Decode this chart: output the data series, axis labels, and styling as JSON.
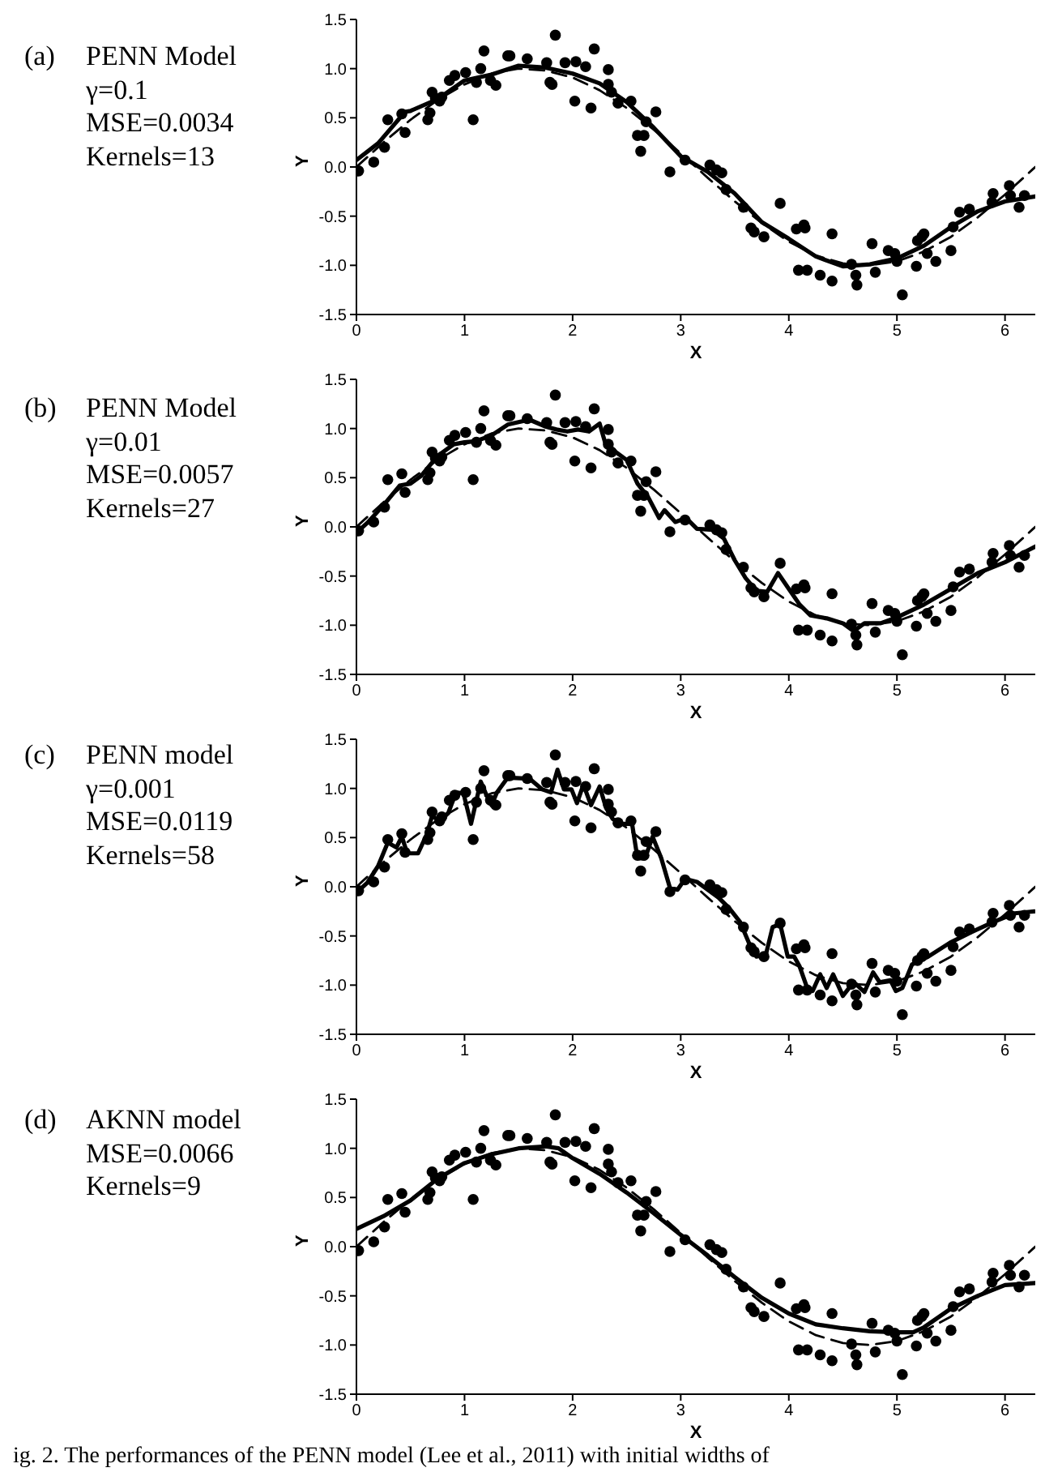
{
  "chart_data": [
    {
      "type": "line",
      "annotations": [
        "(a)",
        "PENN Model",
        "γ=0.1",
        "MSE=0.0034",
        "Kernels=13"
      ],
      "xlabel": "X",
      "ylabel": "Y",
      "xlim": [
        0,
        6.28
      ],
      "ylim": [
        -1.5,
        1.5
      ],
      "xticks": [
        0,
        1,
        2,
        3,
        4,
        5,
        6
      ],
      "yticks": [
        -1.5,
        {
          "value": -1,
          "label": "-1.0"
        },
        -0.5,
        {
          "value": 0,
          "label": "0.0"
        },
        0.5,
        {
          "value": 1,
          "label": "1.0"
        },
        1.5
      ],
      "series": [
        {
          "type": "line",
          "line_style": "dashed",
          "color": "#000000",
          "x": [
            0,
            0.25,
            0.5,
            0.75,
            1,
            1.25,
            1.5,
            1.75,
            2,
            2.25,
            2.5,
            2.75,
            3,
            3.25,
            3.5,
            3.75,
            4,
            4.25,
            4.5,
            4.75,
            5,
            5.25,
            5.5,
            5.75,
            6,
            6.25,
            6.28
          ],
          "values": [
            0,
            0.25,
            0.48,
            0.68,
            0.84,
            0.95,
            1.0,
            0.98,
            0.91,
            0.78,
            0.6,
            0.38,
            0.14,
            -0.11,
            -0.35,
            -0.57,
            -0.76,
            -0.9,
            -0.98,
            -1.0,
            -0.96,
            -0.86,
            -0.71,
            -0.51,
            -0.28,
            -0.03,
            0
          ]
        },
        {
          "type": "line",
          "line_style": "solid",
          "color": "#000000",
          "x": [
            0,
            0.2,
            0.45,
            0.5,
            0.75,
            1,
            1.25,
            1.5,
            1.75,
            2,
            2.25,
            2.5,
            2.75,
            3,
            3.25,
            3.5,
            3.75,
            4,
            4.25,
            4.5,
            4.75,
            5,
            5.25,
            5.5,
            5.75,
            6,
            6.28
          ],
          "values": [
            0.07,
            0.24,
            0.56,
            0.57,
            0.69,
            0.88,
            0.94,
            1.03,
            1.01,
            0.95,
            0.85,
            0.66,
            0.4,
            0.11,
            -0.05,
            -0.27,
            -0.56,
            -0.73,
            -0.91,
            -1.01,
            -0.99,
            -0.93,
            -0.8,
            -0.61,
            -0.45,
            -0.35,
            -0.3
          ]
        },
        {
          "type": "scatter",
          "marker": "circle",
          "color": "#000000",
          "x": [
            0.02,
            0.16,
            0.26,
            0.29,
            0.42,
            0.45,
            0.66,
            0.68,
            0.7,
            0.73,
            0.77,
            0.79,
            0.86,
            0.91,
            1.01,
            1.08,
            1.11,
            1.15,
            1.18,
            1.24,
            1.29,
            1.4,
            1.42,
            1.58,
            1.76,
            1.79,
            1.81,
            1.84,
            1.93,
            2.02,
            2.03,
            2.12,
            2.17,
            2.2,
            2.33,
            2.33,
            2.36,
            2.42,
            2.54,
            2.6,
            2.63,
            2.66,
            2.68,
            2.77,
            2.9,
            3.04,
            3.27,
            3.33,
            3.38,
            3.42,
            3.58,
            3.65,
            3.68,
            3.77,
            3.92,
            4.07,
            4.09,
            4.14,
            4.15,
            4.17,
            4.29,
            4.4,
            4.4,
            4.58,
            4.62,
            4.63,
            4.77,
            4.8,
            4.92,
            4.98,
            5.0,
            5.05,
            5.18,
            5.19,
            5.23,
            5.25,
            5.28,
            5.36,
            5.5,
            5.52,
            5.58,
            5.67,
            5.88,
            5.89,
            6.04,
            6.05,
            6.13,
            6.18
          ],
          "values": [
            -0.04,
            0.05,
            0.2,
            0.48,
            0.54,
            0.35,
            0.48,
            0.55,
            0.76,
            0.7,
            0.67,
            0.71,
            0.88,
            0.93,
            0.96,
            0.48,
            0.86,
            1.0,
            1.18,
            0.88,
            0.83,
            1.13,
            1.13,
            1.1,
            1.06,
            0.86,
            0.84,
            1.34,
            1.06,
            0.67,
            1.07,
            1.02,
            0.6,
            1.2,
            0.99,
            0.84,
            0.76,
            0.65,
            0.67,
            0.32,
            0.16,
            0.32,
            0.46,
            0.56,
            -0.05,
            0.07,
            0.02,
            -0.03,
            -0.06,
            -0.23,
            -0.41,
            -0.62,
            -0.66,
            -0.71,
            -0.37,
            -0.63,
            -1.05,
            -0.59,
            -0.62,
            -1.05,
            -1.1,
            -0.68,
            -1.16,
            -0.99,
            -1.1,
            -1.2,
            -0.78,
            -1.07,
            -0.85,
            -0.88,
            -0.96,
            -1.3,
            -1.01,
            -0.75,
            -0.71,
            -0.68,
            -0.88,
            -0.96,
            -0.85,
            -0.61,
            -0.46,
            -0.43,
            -0.36,
            -0.27,
            -0.19,
            -0.29,
            -0.41,
            -0.29
          ]
        }
      ]
    },
    {
      "type": "line",
      "annotations": [
        "(b)",
        "PENN Model",
        "γ=0.01",
        "MSE=0.0057",
        "Kernels=27"
      ],
      "xlabel": "X",
      "ylabel": "Y",
      "xlim": [
        0,
        6.28
      ],
      "ylim": [
        -1.5,
        1.5
      ],
      "xticks": [
        0,
        1,
        2,
        3,
        4,
        5,
        6
      ],
      "yticks": [
        -1.5,
        {
          "value": -1,
          "label": "-1.0"
        },
        -0.5,
        {
          "value": 0,
          "label": "0.0"
        },
        0.5,
        {
          "value": 1,
          "label": "1.0"
        },
        1.5
      ],
      "series": [
        {
          "type": "line",
          "line_style": "dashed",
          "color": "#000000",
          "x": [
            0,
            0.25,
            0.5,
            0.75,
            1,
            1.25,
            1.5,
            1.75,
            2,
            2.25,
            2.5,
            2.75,
            3,
            3.25,
            3.5,
            3.75,
            4,
            4.25,
            4.5,
            4.75,
            5,
            5.25,
            5.5,
            5.75,
            6,
            6.25,
            6.28
          ],
          "values": [
            0,
            0.25,
            0.48,
            0.68,
            0.84,
            0.95,
            1.0,
            0.98,
            0.91,
            0.78,
            0.6,
            0.38,
            0.14,
            -0.11,
            -0.35,
            -0.57,
            -0.76,
            -0.9,
            -0.98,
            -1.0,
            -0.96,
            -0.86,
            -0.71,
            -0.51,
            -0.28,
            -0.03,
            0
          ]
        },
        {
          "type": "line",
          "line_style": "solid",
          "color": "#000000",
          "x": [
            0,
            0.1,
            0.25,
            0.4,
            0.5,
            0.6,
            0.75,
            0.9,
            1.0,
            1.1,
            1.25,
            1.4,
            1.6,
            1.75,
            1.85,
            1.95,
            2.05,
            2.15,
            2.25,
            2.3,
            2.4,
            2.5,
            2.6,
            2.7,
            2.8,
            2.85,
            2.95,
            3.05,
            3.15,
            3.3,
            3.4,
            3.5,
            3.6,
            3.7,
            3.8,
            3.9,
            4.0,
            4.1,
            4.2,
            4.35,
            4.5,
            4.6,
            4.7,
            4.85,
            5.0,
            5.25,
            5.5,
            5.75,
            6.0,
            6.28
          ],
          "values": [
            -0.06,
            0.04,
            0.22,
            0.42,
            0.44,
            0.52,
            0.72,
            0.84,
            0.86,
            0.87,
            0.93,
            1.04,
            1.09,
            1.02,
            0.99,
            0.97,
            0.99,
            0.97,
            1.05,
            0.86,
            0.76,
            0.68,
            0.44,
            0.3,
            0.09,
            0.17,
            0.05,
            0.09,
            -0.02,
            -0.03,
            -0.12,
            -0.34,
            -0.52,
            -0.65,
            -0.66,
            -0.47,
            -0.63,
            -0.79,
            -0.9,
            -0.93,
            -0.98,
            -1.06,
            -0.98,
            -0.98,
            -0.92,
            -0.79,
            -0.63,
            -0.47,
            -0.36,
            -0.2
          ]
        },
        {
          "type": "scatter",
          "marker": "circle",
          "color": "#000000",
          "x": [
            0.02,
            0.16,
            0.26,
            0.29,
            0.42,
            0.45,
            0.66,
            0.68,
            0.7,
            0.73,
            0.77,
            0.79,
            0.86,
            0.91,
            1.01,
            1.08,
            1.11,
            1.15,
            1.18,
            1.24,
            1.29,
            1.4,
            1.42,
            1.58,
            1.76,
            1.79,
            1.81,
            1.84,
            1.93,
            2.02,
            2.03,
            2.12,
            2.17,
            2.2,
            2.33,
            2.33,
            2.36,
            2.42,
            2.54,
            2.6,
            2.63,
            2.66,
            2.68,
            2.77,
            2.9,
            3.04,
            3.27,
            3.33,
            3.38,
            3.42,
            3.58,
            3.65,
            3.68,
            3.77,
            3.92,
            4.07,
            4.09,
            4.14,
            4.15,
            4.17,
            4.29,
            4.4,
            4.4,
            4.58,
            4.62,
            4.63,
            4.77,
            4.8,
            4.92,
            4.98,
            5.0,
            5.05,
            5.18,
            5.19,
            5.23,
            5.25,
            5.28,
            5.36,
            5.5,
            5.52,
            5.58,
            5.67,
            5.88,
            5.89,
            6.04,
            6.05,
            6.13,
            6.18
          ],
          "values": [
            -0.04,
            0.05,
            0.2,
            0.48,
            0.54,
            0.35,
            0.48,
            0.55,
            0.76,
            0.7,
            0.67,
            0.71,
            0.88,
            0.93,
            0.96,
            0.48,
            0.86,
            1.0,
            1.18,
            0.88,
            0.83,
            1.13,
            1.13,
            1.1,
            1.06,
            0.86,
            0.84,
            1.34,
            1.06,
            0.67,
            1.07,
            1.02,
            0.6,
            1.2,
            0.99,
            0.84,
            0.76,
            0.65,
            0.67,
            0.32,
            0.16,
            0.32,
            0.46,
            0.56,
            -0.05,
            0.07,
            0.02,
            -0.03,
            -0.06,
            -0.23,
            -0.41,
            -0.62,
            -0.66,
            -0.71,
            -0.37,
            -0.63,
            -1.05,
            -0.59,
            -0.62,
            -1.05,
            -1.1,
            -0.68,
            -1.16,
            -0.99,
            -1.1,
            -1.2,
            -0.78,
            -1.07,
            -0.85,
            -0.88,
            -0.96,
            -1.3,
            -1.01,
            -0.75,
            -0.71,
            -0.68,
            -0.88,
            -0.96,
            -0.85,
            -0.61,
            -0.46,
            -0.43,
            -0.36,
            -0.27,
            -0.19,
            -0.29,
            -0.41,
            -0.29
          ]
        }
      ]
    },
    {
      "type": "line",
      "annotations": [
        "(c)",
        "PENN model",
        "γ=0.001",
        "MSE=0.0119",
        "Kernels=58"
      ],
      "xlabel": "X",
      "ylabel": "Y",
      "xlim": [
        0,
        6.28
      ],
      "ylim": [
        -1.5,
        1.5
      ],
      "xticks": [
        0,
        1,
        2,
        3,
        4,
        5,
        6
      ],
      "yticks": [
        -1.5,
        {
          "value": -1,
          "label": "-1.0"
        },
        -0.5,
        {
          "value": 0,
          "label": "0.0"
        },
        0.5,
        {
          "value": 1,
          "label": "1.0"
        },
        1.5
      ],
      "series": [
        {
          "type": "line",
          "line_style": "dashed",
          "color": "#000000",
          "x": [
            0,
            0.25,
            0.5,
            0.75,
            1,
            1.25,
            1.5,
            1.75,
            2,
            2.25,
            2.5,
            2.75,
            3,
            3.25,
            3.5,
            3.75,
            4,
            4.25,
            4.5,
            4.75,
            5,
            5.25,
            5.5,
            5.75,
            6,
            6.25,
            6.28
          ],
          "values": [
            0,
            0.25,
            0.48,
            0.68,
            0.84,
            0.95,
            1.0,
            0.98,
            0.91,
            0.78,
            0.6,
            0.38,
            0.14,
            -0.11,
            -0.35,
            -0.57,
            -0.76,
            -0.9,
            -0.98,
            -1.0,
            -0.96,
            -0.86,
            -0.71,
            -0.51,
            -0.28,
            -0.03,
            0
          ]
        },
        {
          "type": "line",
          "line_style": "solid",
          "color": "#000000",
          "x": [
            0,
            0.1,
            0.2,
            0.29,
            0.37,
            0.42,
            0.47,
            0.57,
            0.65,
            0.7,
            0.77,
            0.85,
            0.92,
            0.99,
            1.06,
            1.15,
            1.2,
            1.25,
            1.3,
            1.4,
            1.6,
            1.72,
            1.8,
            1.86,
            1.92,
            1.99,
            2.04,
            2.1,
            2.17,
            2.25,
            2.31,
            2.37,
            2.45,
            2.55,
            2.6,
            2.67,
            2.74,
            2.82,
            2.9,
            2.97,
            3.04,
            3.15,
            3.25,
            3.35,
            3.45,
            3.55,
            3.65,
            3.7,
            3.79,
            3.85,
            3.92,
            3.99,
            4.05,
            4.1,
            4.17,
            4.22,
            4.29,
            4.35,
            4.41,
            4.5,
            4.6,
            4.7,
            4.78,
            4.84,
            4.94,
            4.99,
            5.05,
            5.14,
            5.29,
            5.49,
            5.69,
            5.89,
            6.09,
            6.27
          ],
          "values": [
            -0.06,
            0.04,
            0.21,
            0.45,
            0.4,
            0.51,
            0.34,
            0.34,
            0.53,
            0.72,
            0.67,
            0.75,
            0.96,
            0.95,
            0.64,
            1.07,
            0.94,
            0.83,
            0.96,
            1.11,
            1.1,
            0.99,
            0.96,
            1.19,
            0.99,
            0.99,
            0.85,
            1.04,
            0.83,
            1.02,
            0.8,
            0.69,
            0.64,
            0.64,
            0.29,
            0.29,
            0.51,
            0.29,
            -0.01,
            -0.03,
            0.08,
            0.05,
            -0.03,
            -0.11,
            -0.22,
            -0.36,
            -0.62,
            -0.71,
            -0.68,
            -0.41,
            -0.38,
            -0.71,
            -0.71,
            -0.81,
            -1.03,
            -1.06,
            -0.89,
            -1.03,
            -0.89,
            -1.11,
            -0.97,
            -1.07,
            -0.87,
            -0.97,
            -0.95,
            -1.06,
            -1.03,
            -0.79,
            -0.71,
            -0.57,
            -0.46,
            -0.36,
            -0.27,
            -0.25
          ]
        },
        {
          "type": "scatter",
          "marker": "circle",
          "color": "#000000",
          "x": [
            0.02,
            0.16,
            0.26,
            0.29,
            0.42,
            0.45,
            0.66,
            0.68,
            0.7,
            0.73,
            0.77,
            0.79,
            0.86,
            0.91,
            1.01,
            1.08,
            1.11,
            1.15,
            1.18,
            1.24,
            1.29,
            1.4,
            1.42,
            1.58,
            1.76,
            1.79,
            1.81,
            1.84,
            1.93,
            2.02,
            2.03,
            2.12,
            2.17,
            2.2,
            2.33,
            2.33,
            2.36,
            2.42,
            2.54,
            2.6,
            2.63,
            2.66,
            2.68,
            2.77,
            2.9,
            3.04,
            3.27,
            3.33,
            3.38,
            3.42,
            3.58,
            3.65,
            3.68,
            3.77,
            3.92,
            4.07,
            4.09,
            4.14,
            4.15,
            4.17,
            4.29,
            4.4,
            4.4,
            4.58,
            4.62,
            4.63,
            4.77,
            4.8,
            4.92,
            4.98,
            5.0,
            5.05,
            5.18,
            5.19,
            5.23,
            5.25,
            5.28,
            5.36,
            5.5,
            5.52,
            5.58,
            5.67,
            5.88,
            5.89,
            6.04,
            6.05,
            6.13,
            6.18
          ],
          "values": [
            -0.04,
            0.05,
            0.2,
            0.48,
            0.54,
            0.35,
            0.48,
            0.55,
            0.76,
            null,
            0.67,
            0.71,
            0.88,
            0.93,
            0.96,
            0.48,
            0.86,
            1.0,
            1.18,
            0.88,
            0.83,
            1.13,
            1.13,
            1.1,
            1.06,
            0.86,
            0.84,
            1.34,
            1.06,
            0.67,
            1.07,
            1.02,
            0.6,
            1.2,
            0.99,
            0.84,
            0.76,
            0.65,
            0.67,
            0.32,
            0.16,
            0.32,
            0.46,
            0.56,
            -0.05,
            0.07,
            0.02,
            -0.03,
            -0.06,
            -0.23,
            -0.41,
            -0.62,
            -0.66,
            -0.71,
            -0.37,
            -0.63,
            -1.05,
            -0.59,
            -0.62,
            -1.05,
            -1.1,
            -0.68,
            -1.16,
            -0.99,
            -1.1,
            -1.2,
            -0.78,
            -1.07,
            -0.85,
            -0.88,
            -0.96,
            -1.3,
            -1.01,
            -0.75,
            -0.71,
            -0.68,
            -0.88,
            -0.96,
            -0.85,
            -0.61,
            -0.46,
            -0.43,
            -0.36,
            -0.27,
            -0.19,
            -0.29,
            -0.41,
            -0.29
          ]
        }
      ]
    },
    {
      "type": "line",
      "annotations": [
        "(d)",
        "AKNN model",
        "MSE=0.0066",
        "Kernels=9"
      ],
      "xlabel": "X",
      "ylabel": "Y",
      "xlim": [
        0,
        6.28
      ],
      "ylim": [
        -1.5,
        1.5
      ],
      "xticks": [
        0,
        1,
        2,
        3,
        4,
        5,
        6
      ],
      "yticks": [
        -1.5,
        {
          "value": -1,
          "label": "-1.0"
        },
        -0.5,
        {
          "value": 0,
          "label": "0.0"
        },
        0.5,
        {
          "value": 1,
          "label": "1.0"
        },
        1.5
      ],
      "series": [
        {
          "type": "line",
          "line_style": "dashed",
          "color": "#000000",
          "x": [
            0,
            0.25,
            0.5,
            0.75,
            1,
            1.25,
            1.5,
            1.75,
            2,
            2.25,
            2.5,
            2.75,
            3,
            3.25,
            3.5,
            3.75,
            4,
            4.25,
            4.5,
            4.75,
            5,
            5.25,
            5.5,
            5.75,
            6,
            6.25,
            6.28
          ],
          "values": [
            0,
            0.25,
            0.48,
            0.68,
            0.84,
            0.95,
            1.0,
            0.98,
            0.91,
            0.78,
            0.6,
            0.38,
            0.14,
            -0.11,
            -0.35,
            -0.57,
            -0.76,
            -0.9,
            -0.98,
            -1.0,
            -0.96,
            -0.86,
            -0.71,
            -0.51,
            -0.28,
            -0.03,
            0
          ]
        },
        {
          "type": "line",
          "line_style": "solid",
          "color": "#000000",
          "x": [
            0,
            0.25,
            0.5,
            0.75,
            1,
            1.25,
            1.5,
            1.75,
            1.87,
            2,
            2.25,
            2.5,
            2.75,
            3,
            3.25,
            3.5,
            3.75,
            4,
            4.25,
            4.5,
            4.75,
            5,
            5.15,
            5.25,
            5.5,
            5.75,
            6,
            6.28
          ],
          "values": [
            0.18,
            0.31,
            0.47,
            0.69,
            0.85,
            0.94,
            1.0,
            1.02,
            1.0,
            0.9,
            0.74,
            0.55,
            0.34,
            0.12,
            -0.09,
            -0.31,
            -0.52,
            -0.68,
            -0.79,
            -0.83,
            -0.86,
            -0.87,
            -0.87,
            -0.82,
            -0.63,
            -0.5,
            -0.39,
            -0.37
          ]
        },
        {
          "type": "scatter",
          "marker": "circle",
          "color": "#000000",
          "x": [
            0.02,
            0.16,
            0.26,
            0.29,
            0.42,
            0.45,
            0.66,
            0.68,
            0.7,
            0.73,
            0.77,
            0.79,
            0.86,
            0.91,
            1.01,
            1.08,
            1.11,
            1.15,
            1.18,
            1.24,
            1.29,
            1.4,
            1.42,
            1.58,
            1.76,
            1.79,
            1.81,
            1.84,
            1.93,
            2.02,
            2.03,
            2.12,
            2.17,
            2.2,
            2.33,
            2.33,
            2.36,
            2.42,
            2.54,
            2.6,
            2.63,
            2.66,
            2.68,
            2.77,
            2.9,
            3.04,
            3.27,
            3.33,
            3.38,
            3.42,
            3.58,
            3.65,
            3.68,
            3.77,
            3.92,
            4.07,
            4.09,
            4.14,
            4.15,
            4.17,
            4.29,
            4.4,
            4.4,
            4.58,
            4.62,
            4.63,
            4.77,
            4.8,
            4.92,
            4.98,
            5.0,
            5.05,
            5.18,
            5.19,
            5.23,
            5.25,
            5.28,
            5.36,
            5.5,
            5.52,
            5.58,
            5.67,
            5.88,
            5.89,
            6.04,
            6.05,
            6.13,
            6.18
          ],
          "values": [
            -0.04,
            0.05,
            0.2,
            0.48,
            0.54,
            0.35,
            0.48,
            0.55,
            0.76,
            0.7,
            0.67,
            0.71,
            0.88,
            0.93,
            0.96,
            0.48,
            0.86,
            1.0,
            1.18,
            0.88,
            0.83,
            1.13,
            1.13,
            1.1,
            1.06,
            0.86,
            0.84,
            1.34,
            1.06,
            0.67,
            1.07,
            1.02,
            0.6,
            1.2,
            0.99,
            0.84,
            0.76,
            0.65,
            0.67,
            0.32,
            0.16,
            0.32,
            0.46,
            0.56,
            -0.05,
            0.07,
            0.02,
            -0.03,
            -0.06,
            -0.23,
            -0.41,
            -0.62,
            -0.66,
            -0.71,
            -0.37,
            -0.63,
            -1.05,
            -0.59,
            -0.62,
            -1.05,
            -1.1,
            -0.68,
            -1.16,
            -0.99,
            -1.1,
            -1.2,
            -0.78,
            -1.07,
            -0.85,
            -0.88,
            -0.96,
            -1.3,
            -1.01,
            -0.75,
            -0.71,
            -0.68,
            -0.88,
            -0.96,
            -0.85,
            -0.61,
            -0.46,
            -0.43,
            -0.36,
            -0.27,
            -0.19,
            -0.29,
            -0.41,
            -0.29
          ]
        }
      ]
    },
    {
      "type": "other",
      "annotations": [
        "ig. 2. The performances of the PENN model (Lee et al., 2011) with initial widths of"
      ]
    }
  ]
}
